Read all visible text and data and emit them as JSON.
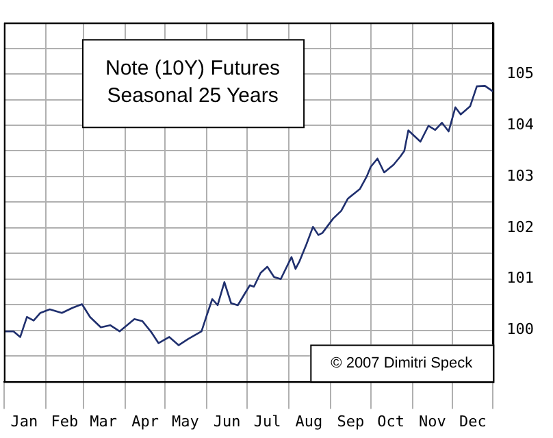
{
  "chart_data": {
    "type": "line",
    "title": "Note (10Y) Futures\nSeasonal 25 Years",
    "annotations": [
      "© 2007 Dimitri Speck"
    ],
    "xlim": [
      "--01-01",
      "--12-31"
    ],
    "xticks": [
      {
        "value": "--01-01",
        "label": null
      },
      {
        "value": "--01-16",
        "label": "Jan"
      },
      {
        "value": "--02-01",
        "label": null
      },
      {
        "value": "--02-15",
        "label": "Feb"
      },
      {
        "value": "--03-01",
        "label": null
      },
      {
        "value": "--03-16",
        "label": "Mar"
      },
      {
        "value": "--04-01",
        "label": null
      },
      {
        "value": "--04-16",
        "label": "Apr"
      },
      {
        "value": "--05-01",
        "label": null
      },
      {
        "value": "--05-16",
        "label": "May"
      },
      {
        "value": "--06-01",
        "label": null
      },
      {
        "value": "--06-16",
        "label": "Jun"
      },
      {
        "value": "--07-01",
        "label": null
      },
      {
        "value": "--07-16",
        "label": "Jul"
      },
      {
        "value": "--08-01",
        "label": null
      },
      {
        "value": "--08-16",
        "label": "Aug"
      },
      {
        "value": "--09-01",
        "label": null
      },
      {
        "value": "--09-16",
        "label": "Sep"
      },
      {
        "value": "--10-01",
        "label": null
      },
      {
        "value": "--10-16",
        "label": "Oct"
      },
      {
        "value": "--11-01",
        "label": null
      },
      {
        "value": "--11-16",
        "label": "Nov"
      },
      {
        "value": "--12-01",
        "label": null
      },
      {
        "value": "--12-16",
        "label": "Dec"
      },
      {
        "value": "--12-31",
        "label": null
      }
    ],
    "ylim": [
      99,
      106
    ],
    "yticks": [
      {
        "value": 99,
        "label": null
      },
      {
        "value": 99.5,
        "label": null
      },
      100,
      {
        "value": 100.5,
        "label": null
      },
      101,
      {
        "value": 101.5,
        "label": null
      },
      102,
      {
        "value": 102.5,
        "label": null
      },
      103,
      {
        "value": 103.5,
        "label": null
      },
      104,
      {
        "value": 104.5,
        "label": null
      },
      105,
      {
        "value": 105.5,
        "label": null
      },
      {
        "value": 106,
        "label": null
      }
    ],
    "grid": true,
    "legend": false,
    "marker": "none",
    "line_style": "solid",
    "series": [
      {
        "color": "#1f2f6e",
        "x": [
          "--01-01",
          "--01-08",
          "--01-13",
          "--01-18",
          "--01-23",
          "--01-28",
          "--02-04",
          "--02-13",
          "--02-21",
          "--02-28",
          "--03-06",
          "--03-14",
          "--03-21",
          "--03-28",
          "--04-08",
          "--04-14",
          "--04-21",
          "--04-26",
          "--05-04",
          "--05-11",
          "--05-18",
          "--05-28",
          "--06-01",
          "--06-05",
          "--06-09",
          "--06-14",
          "--06-19",
          "--06-24",
          "--07-03",
          "--07-06",
          "--07-11",
          "--07-16",
          "--07-21",
          "--07-26",
          "--08-03",
          "--08-06",
          "--08-09",
          "--08-14",
          "--08-19",
          "--08-23",
          "--08-26",
          "--09-03",
          "--09-09",
          "--09-14",
          "--09-23",
          "--09-28",
          "--10-01",
          "--10-06",
          "--10-11",
          "--10-18",
          "--10-23",
          "--10-26",
          "--10-29",
          "--11-07",
          "--11-13",
          "--11-18",
          "--11-23",
          "--11-28",
          "--12-03",
          "--12-07",
          "--12-14",
          "--12-19",
          "--12-25",
          "--12-31"
        ],
        "values": [
          99.98,
          99.98,
          99.87,
          100.26,
          100.19,
          100.34,
          100.41,
          100.34,
          100.44,
          100.51,
          100.26,
          100.06,
          100.1,
          99.98,
          100.22,
          100.18,
          99.95,
          99.75,
          99.87,
          99.71,
          99.83,
          99.98,
          100.3,
          100.61,
          100.49,
          100.94,
          100.53,
          100.49,
          100.88,
          100.85,
          101.12,
          101.24,
          101.04,
          101,
          101.43,
          101.2,
          101.35,
          101.67,
          102.02,
          101.86,
          101.9,
          102.18,
          102.33,
          102.57,
          102.76,
          103,
          103.19,
          103.35,
          103.08,
          103.23,
          103.39,
          103.5,
          103.9,
          103.68,
          103.99,
          103.91,
          104.05,
          103.88,
          104.35,
          104.21,
          104.37,
          104.76,
          104.77,
          104.66
        ]
      }
    ]
  }
}
